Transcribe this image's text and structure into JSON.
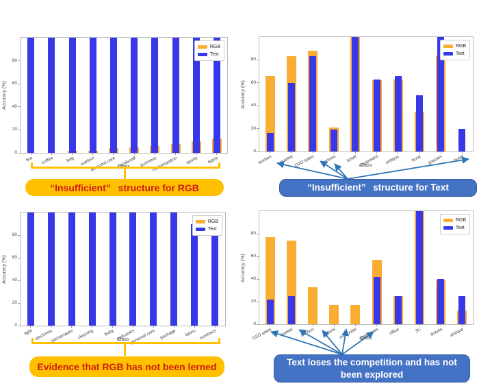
{
  "figure": {
    "colors": {
      "rgb_series": "#FBAC33",
      "text_series": "#3838E8",
      "callout_orange_bg": "#FFC000",
      "callout_orange_text": "#CE1A0C",
      "callout_blue_bg": "#4472C4",
      "callout_blue_text": "#FFFFFF",
      "arrow_blue": "#2E75B6",
      "brace_orange": "#FFC000"
    }
  },
  "callouts": {
    "top_left": "“Insufficient”  structure for RGB",
    "top_right": "“Insufficient”  structure for Text",
    "bottom_left": "Evidence that RGB has not been lerned",
    "bottom_right": "Text loses the competition and has not been explored"
  },
  "chart_data": [
    {
      "id": "top_left",
      "type": "bar",
      "title": "",
      "xlabel": "Class",
      "ylabel": "Accuracy (%)",
      "yticks": [
        0,
        20,
        40,
        60,
        80
      ],
      "ylim": [
        0,
        100
      ],
      "legend": [
        "RGB",
        "Text"
      ],
      "legend_position": "upper right",
      "grid": false,
      "categories": [
        "tea",
        "coffee",
        "bag",
        "outdoor",
        "personal care",
        "handicraft",
        "business",
        "customization",
        "sports",
        "fabric"
      ],
      "series": [
        {
          "name": "RGB",
          "values": [
            0,
            0,
            2,
            2,
            4,
            5,
            6,
            8,
            10,
            12
          ]
        },
        {
          "name": "Text",
          "values": [
            100,
            100,
            100,
            100,
            100,
            100,
            100,
            100,
            100,
            100
          ]
        }
      ]
    },
    {
      "id": "top_right",
      "type": "bar",
      "title": "",
      "xlabel": "Class",
      "ylabel": "Accuracy (%)",
      "yticks": [
        0,
        20,
        40,
        60,
        80
      ],
      "ylim": [
        0,
        100
      ],
      "legend": [
        "RGB",
        "Text"
      ],
      "legend_position": "upper right",
      "grid": false,
      "categories": [
        "auction",
        "market",
        "O2O sales",
        "cartoon",
        "ticket",
        "equipment",
        "antique",
        "book",
        "glasses",
        "hotel"
      ],
      "series": [
        {
          "name": "RGB",
          "values": [
            66,
            83,
            88,
            21,
            100,
            62,
            63,
            35,
            84,
            0
          ]
        },
        {
          "name": "Text",
          "values": [
            16,
            60,
            83,
            19,
            100,
            63,
            66,
            49,
            100,
            20
          ]
        }
      ]
    },
    {
      "id": "bottom_left",
      "type": "bar",
      "title": "",
      "xlabel": "Class",
      "ylabel": "Accuracy (%)",
      "yticks": [
        0,
        20,
        40,
        60,
        80
      ],
      "ylim": [
        0,
        100
      ],
      "legend": [
        "RGB",
        "Text"
      ],
      "legend_position": "upper right",
      "grid": false,
      "categories": [
        "light",
        "electronic",
        "kitchenware",
        "cleaning",
        "baby",
        "suitcases",
        "personal care",
        "package",
        "fabric",
        "business"
      ],
      "series": [
        {
          "name": "RGB",
          "values": [
            0,
            0,
            0,
            0,
            0,
            0,
            0,
            0,
            0,
            0
          ]
        },
        {
          "name": "Text",
          "values": [
            100,
            100,
            100,
            100,
            100,
            100,
            100,
            100,
            90,
            85
          ]
        }
      ]
    },
    {
      "id": "bottom_right",
      "type": "bar",
      "title": "",
      "xlabel": "Class",
      "ylabel": "Accuracy (%)",
      "yticks": [
        0,
        20,
        40,
        60,
        80
      ],
      "ylim": [
        0,
        100
      ],
      "legend": [
        "RGB",
        "Text"
      ],
      "legend_position": "upper right",
      "grid": false,
      "categories": [
        "O2O sales",
        "market",
        "auction",
        "others",
        "computer",
        "appliances",
        "office",
        "3C",
        "tickets",
        "antique"
      ],
      "series": [
        {
          "name": "RGB",
          "values": [
            77,
            74,
            33,
            17,
            17,
            57,
            25,
            100,
            39,
            12
          ]
        },
        {
          "name": "Text",
          "values": [
            22,
            25,
            0,
            0,
            0,
            42,
            25,
            100,
            40,
            25
          ]
        }
      ]
    }
  ]
}
